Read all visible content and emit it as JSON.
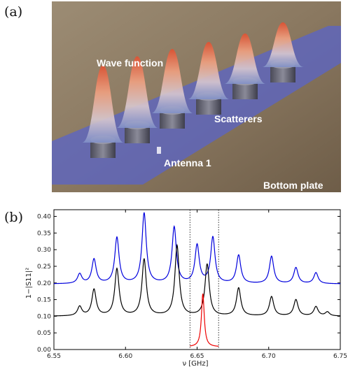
{
  "panel_a": {
    "label": "(a)",
    "photo_labels": {
      "wave_function": "Wave function",
      "scatterers": "Scatterers",
      "antenna": "Antenna 1",
      "bottom_plate": "Bottom plate"
    }
  },
  "panel_b": {
    "label": "(b)"
  },
  "chart_data": {
    "type": "line",
    "xlabel": "ν [GHz]",
    "ylabel": "1−|S11|²",
    "xlim": [
      6.55,
      6.75
    ],
    "ylim": [
      0.0,
      0.42
    ],
    "xticks": [
      "6.55",
      "6.60",
      "6.65",
      "6.70",
      "6.75"
    ],
    "yticks": [
      "0.00",
      "0.05",
      "0.10",
      "0.15",
      "0.20",
      "0.25",
      "0.30",
      "0.35",
      "0.40"
    ],
    "vlines": [
      6.645,
      6.665
    ],
    "series": [
      {
        "color": "#0000dd",
        "baseline": 0.197,
        "peaks": [
          [
            6.568,
            0.226
          ],
          [
            6.578,
            0.27
          ],
          [
            6.594,
            0.335
          ],
          [
            6.613,
            0.408
          ],
          [
            6.634,
            0.366
          ],
          [
            6.65,
            0.311
          ],
          [
            6.661,
            0.335
          ],
          [
            6.679,
            0.282
          ],
          [
            6.702,
            0.279
          ],
          [
            6.719,
            0.245
          ],
          [
            6.733,
            0.23
          ]
        ]
      },
      {
        "color": "#000000",
        "baseline": 0.1,
        "peaks": [
          [
            6.568,
            0.128
          ],
          [
            6.578,
            0.179
          ],
          [
            6.594,
            0.241
          ],
          [
            6.613,
            0.27
          ],
          [
            6.636,
            0.311
          ],
          [
            6.657,
            0.255
          ],
          [
            6.679,
            0.184
          ],
          [
            6.702,
            0.158
          ],
          [
            6.719,
            0.149
          ],
          [
            6.733,
            0.128
          ],
          [
            6.741,
            0.112
          ]
        ]
      },
      {
        "color": "#ee0000",
        "range": [
          6.645,
          6.665
        ],
        "baseline": 0.008,
        "peaks": [
          [
            6.654,
            0.167
          ]
        ]
      }
    ]
  }
}
